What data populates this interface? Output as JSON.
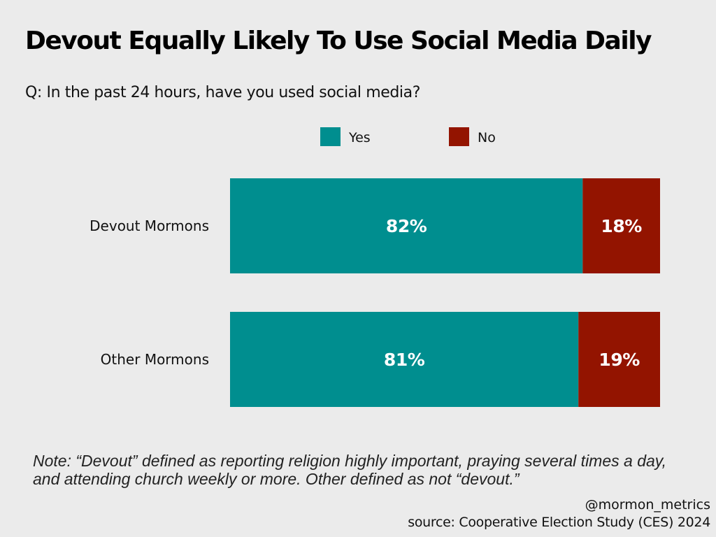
{
  "title": "Devout Equally Likely To Use Social Media Daily",
  "subtitle": "Q: In the past 24 hours, have you used social media?",
  "note": "Note: “Devout” defined as reporting religion highly important, praying several times a day, and attending church weekly or more. Other defined as not “devout.”",
  "handle": "@mormon_metrics",
  "source": "source: Cooperative Election Study (CES) 2024",
  "colors": {
    "yes": "#008e8f",
    "no": "#931400",
    "background": "#ebebeb"
  },
  "chart_data": {
    "type": "bar",
    "orientation": "horizontal",
    "stacked": true,
    "categories": [
      "Devout Mormons",
      "Other Mormons"
    ],
    "series": [
      {
        "name": "Yes",
        "values": [
          82,
          81
        ],
        "labels": [
          "82%",
          "81%"
        ],
        "color": "#008e8f"
      },
      {
        "name": "No",
        "values": [
          18,
          19
        ],
        "labels": [
          "18%",
          "19%"
        ],
        "color": "#931400"
      }
    ],
    "xlim": [
      0,
      100
    ],
    "grid": false,
    "legend_position": "top"
  }
}
